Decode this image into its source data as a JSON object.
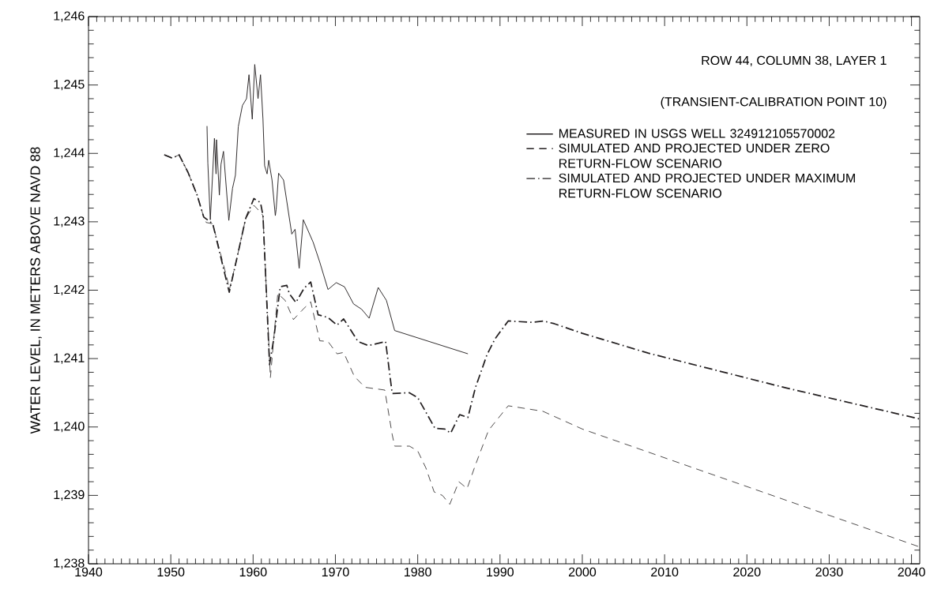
{
  "chart_data": {
    "type": "line",
    "ylabel": "WATER LEVEL, IN METERS ABOVE NAVD 88",
    "annotations": [
      "ROW 44, COLUMN 38, LAYER 1",
      "(TRANSIENT-CALIBRATION POINT 10)"
    ],
    "xlim": [
      1940,
      2041
    ],
    "xticks": [
      1940,
      1950,
      1960,
      1970,
      1980,
      1990,
      2000,
      2010,
      2020,
      2030,
      2040
    ],
    "ylim": [
      1238,
      1246
    ],
    "yticks": [
      {
        "value": 1238,
        "label": "1,238"
      },
      {
        "value": 1239,
        "label": "1,239"
      },
      {
        "value": 1240,
        "label": "1,240"
      },
      {
        "value": 1241,
        "label": "1,241"
      },
      {
        "value": 1242,
        "label": "1,242"
      },
      {
        "value": 1243,
        "label": "1,243"
      },
      {
        "value": 1244,
        "label": "1,244"
      },
      {
        "value": 1245,
        "label": "1,245"
      },
      {
        "value": 1246,
        "label": "1,246"
      }
    ],
    "grid": false,
    "legend": "top right",
    "marker": "none",
    "series": [
      {
        "name": "MEASURED IN USGS WELL 324912105570002",
        "color": "#231f20",
        "line_style": "solid",
        "x": [
          1954.4,
          1954.5,
          1954.8,
          1955.3,
          1955.5,
          1955.55,
          1955.9,
          1956.1,
          1956.4,
          1957.05,
          1957.5,
          1957.85,
          1958.2,
          1958.7,
          1959.2,
          1959.5,
          1959.9,
          1960.2,
          1960.6,
          1960.9,
          1961.2,
          1961.4,
          1961.7,
          1961.9,
          1962.3,
          1962.7,
          1962.8,
          1963.1,
          1963.7,
          1964.7,
          1965.1,
          1965.6,
          1966.1,
          1967.3,
          1968.1,
          1969.1,
          1970.1,
          1971.1,
          1972.2,
          1973.2,
          1974.1,
          1975.2,
          1976.2,
          1977.2,
          1986.1
        ],
        "values": [
          1244.4,
          1243.86,
          1243.03,
          1244.22,
          1243.7,
          1244.2,
          1243.39,
          1243.84,
          1244.03,
          1243.02,
          1243.49,
          1243.68,
          1244.39,
          1244.7,
          1244.8,
          1245.15,
          1244.5,
          1245.3,
          1244.8,
          1245.15,
          1244.5,
          1243.82,
          1243.7,
          1243.9,
          1243.61,
          1243.09,
          1243.18,
          1243.71,
          1243.61,
          1242.82,
          1242.89,
          1242.32,
          1243.03,
          1242.7,
          1242.41,
          1242.01,
          1242.11,
          1242.05,
          1241.8,
          1241.72,
          1241.59,
          1242.04,
          1241.85,
          1241.41,
          1241.07
        ]
      },
      {
        "name": "SIMULATED AND PROJECTED UNDER ZERO RETURN-FLOW SCENARIO",
        "color": "#231f20",
        "line_style": "dashed",
        "x": [
          1949.2,
          1950.2,
          1951.0,
          1952.1,
          1953.2,
          1954.0,
          1954.3,
          1955.1,
          1956.9,
          1957.1,
          1958.0,
          1959.1,
          1960.1,
          1960.9,
          1961.2,
          1962.1,
          1962.5,
          1963.0,
          1963.9,
          1964.9,
          1965.9,
          1967.0,
          1968.1,
          1969.1,
          1970.2,
          1971.0,
          1972.3,
          1973.6,
          1976.0,
          1976.9,
          1977.2,
          1979.0,
          1980.0,
          1981.0,
          1982.0,
          1983.0,
          1983.9,
          1985.0,
          1986.0,
          1987.0,
          1988.6,
          1991.0,
          1995.2,
          2000.0,
          2040.9
        ],
        "values": [
          1243.98,
          1243.93,
          1243.98,
          1243.72,
          1243.39,
          1243.07,
          1242.99,
          1242.97,
          1242.14,
          1242.0,
          1242.45,
          1243.05,
          1243.24,
          1243.14,
          1243.09,
          1240.72,
          1241.28,
          1241.95,
          1241.85,
          1241.57,
          1241.7,
          1241.83,
          1241.26,
          1241.25,
          1241.07,
          1241.09,
          1240.74,
          1240.58,
          1240.54,
          1239.89,
          1239.72,
          1239.72,
          1239.65,
          1239.4,
          1239.05,
          1239.0,
          1238.87,
          1239.2,
          1239.1,
          1239.44,
          1239.95,
          1240.31,
          1240.23,
          1239.97,
          1238.25
        ]
      },
      {
        "name": "SIMULATED AND PROJECTED UNDER MAXIMUM RETURN-FLOW SCENARIO",
        "color": "#231f20",
        "line_style": "dashdot",
        "x": [
          1949.2,
          1950.2,
          1951.0,
          1952.1,
          1953.2,
          1954.0,
          1955.1,
          1957.1,
          1958.0,
          1959.1,
          1960.1,
          1960.9,
          1961.2,
          1962.0,
          1962.5,
          1963.3,
          1964.1,
          1964.4,
          1965.2,
          1966.2,
          1967.0,
          1967.9,
          1969.1,
          1970.2,
          1971.0,
          1972.75,
          1974.0,
          1976.1,
          1976.9,
          1979.0,
          1980.0,
          1982.1,
          1983.3,
          1984.0,
          1985.1,
          1986.1,
          1987.0,
          1988.4,
          1989.4,
          1991.0,
          1993.9,
          1995.25,
          1996.6,
          2000.0,
          2008.0,
          2024.8,
          2040.9
        ],
        "values": [
          1243.98,
          1243.93,
          1243.98,
          1243.72,
          1243.39,
          1243.07,
          1242.97,
          1241.97,
          1242.45,
          1243.05,
          1243.34,
          1243.28,
          1243.09,
          1240.91,
          1241.28,
          1242.05,
          1242.07,
          1241.95,
          1241.82,
          1242.03,
          1242.12,
          1241.64,
          1241.6,
          1241.49,
          1241.58,
          1241.25,
          1241.19,
          1241.25,
          1240.49,
          1240.5,
          1240.43,
          1239.98,
          1239.97,
          1239.91,
          1240.18,
          1240.14,
          1240.57,
          1241.05,
          1241.29,
          1241.55,
          1241.53,
          1241.55,
          1241.51,
          1241.37,
          1241.08,
          1240.57,
          1240.12
        ]
      }
    ]
  }
}
